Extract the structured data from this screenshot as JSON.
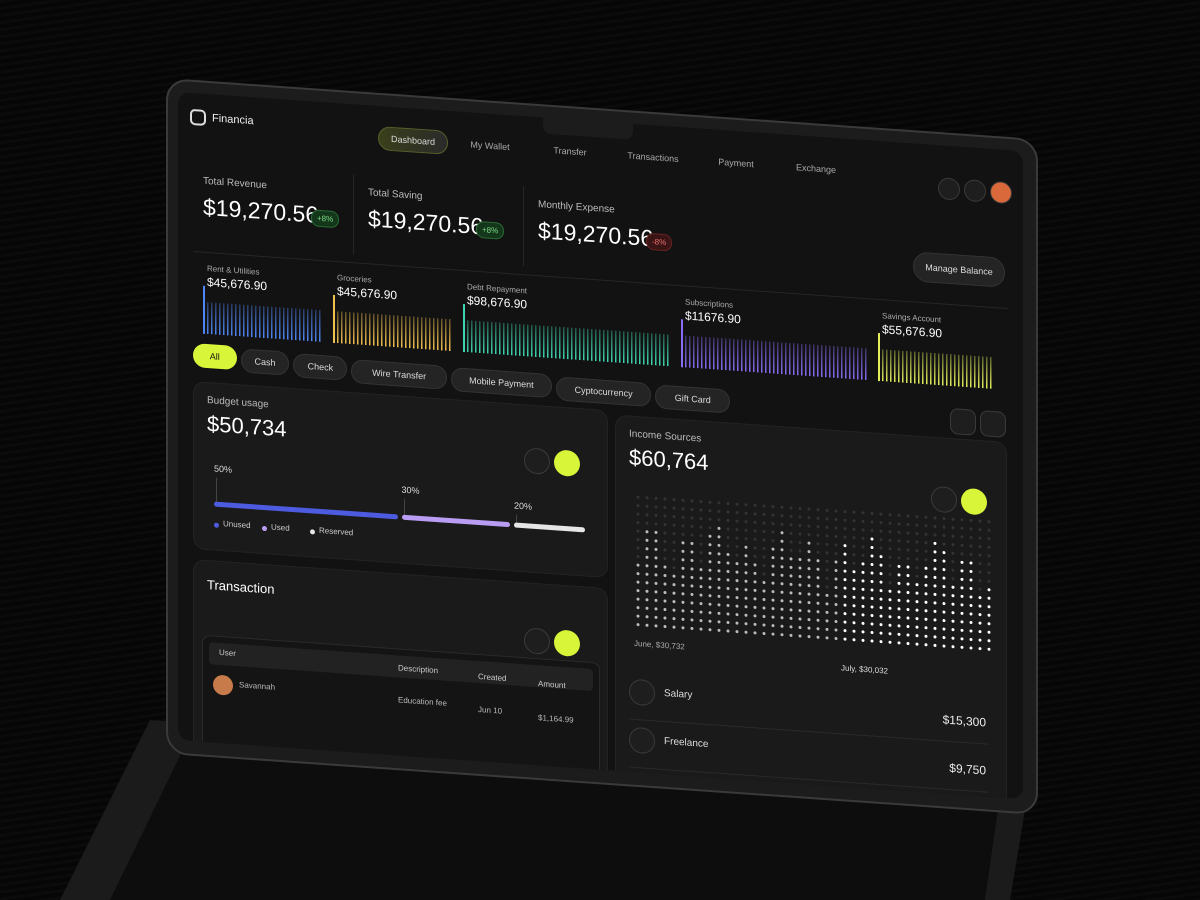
{
  "brand": "Financia",
  "nav": [
    "Dashboard",
    "My Wallet",
    "Transfer",
    "Transactions",
    "Payment",
    "Exchange"
  ],
  "stats": [
    {
      "label": "Total Revenue",
      "value": "$19,270.56",
      "change": "+8%"
    },
    {
      "label": "Total Saving",
      "value": "$19,270.56",
      "change": "+8%"
    },
    {
      "label": "Monthly Expense",
      "value": "$19,270.56",
      "change": "-8%"
    }
  ],
  "manage_button": "Manage Balance",
  "categories": [
    {
      "name": "Rent & Utilities",
      "amount": "$45,676.90",
      "color": "#4f86f7"
    },
    {
      "name": "Groceries",
      "amount": "$45,676.90",
      "color": "#f2c14e"
    },
    {
      "name": "Debt Repayment",
      "amount": "$98,676.90",
      "color": "#3ed6b0"
    },
    {
      "name": "Subscriptions",
      "amount": "$11676.90",
      "color": "#8a6cf7"
    },
    {
      "name": "Savings Account",
      "amount": "$55,676.90",
      "color": "#e4ef5a"
    }
  ],
  "filters": [
    "All",
    "Cash",
    "Check",
    "Wire Transfer",
    "Mobile Payment",
    "Cyptocurrency",
    "Gift Card"
  ],
  "budget": {
    "title": "Budget usage",
    "amount": "$50,734",
    "segments": [
      {
        "name": "Unused",
        "value": 50,
        "label": "50%",
        "color": "#4c5be0"
      },
      {
        "name": "Used",
        "value": 30,
        "label": "30%",
        "color": "#b89df2"
      },
      {
        "name": "Reserved",
        "value": 20,
        "label": "20%",
        "color": "#e6e6e6"
      }
    ]
  },
  "income": {
    "title": "Income Sources",
    "amount": "$60,764",
    "chart_labels": [
      "June, $30,732",
      "July, $30,032"
    ],
    "sources": [
      {
        "name": "Salary",
        "amount": "$15,300"
      },
      {
        "name": "Freelance",
        "amount": "$9,750"
      }
    ]
  },
  "transaction": {
    "title": "Transaction",
    "columns": [
      "User",
      "Description",
      "Created",
      "Amount"
    ],
    "rows": [
      [
        "Savannah",
        "Education fee",
        "Jun 10",
        "$1,164.99"
      ]
    ]
  }
}
